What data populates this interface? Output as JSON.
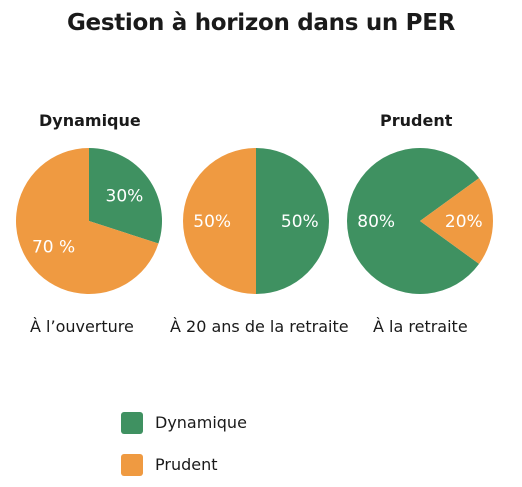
{
  "chart_data": {
    "type": "pie",
    "title": "Gestion à horizon dans un PER",
    "series": [
      {
        "name": "Dynamique",
        "color": "#3f9161"
      },
      {
        "name": "Prudent",
        "color": "#ef9a41"
      }
    ],
    "pies": [
      {
        "heading": "Dynamique",
        "caption": "À l’ouverture",
        "values": [
          30,
          70
        ],
        "labels": [
          "30%",
          "70 %"
        ]
      },
      {
        "heading": "",
        "caption": "À 20 ans de la retraite",
        "values": [
          50,
          50
        ],
        "labels": [
          "50%",
          "50%"
        ]
      },
      {
        "heading": "Prudent",
        "caption": "À la retraite",
        "values": [
          80,
          20
        ],
        "labels": [
          "80%",
          "20%"
        ]
      }
    ],
    "legend_position": "bottom-left"
  }
}
